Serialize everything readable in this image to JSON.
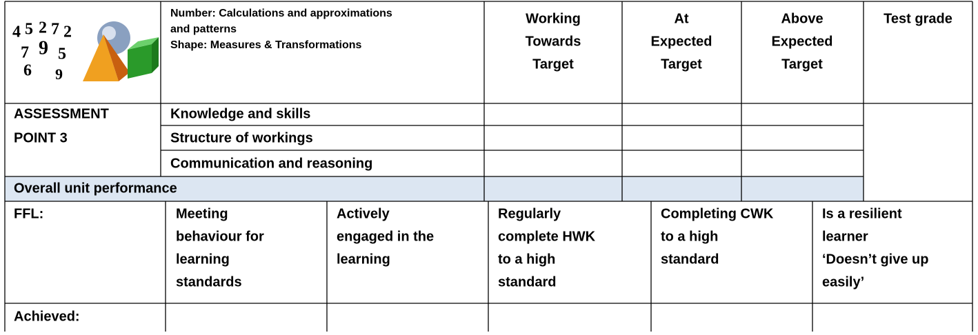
{
  "header": {
    "description": [
      "Number: Calculations and approximations",
      "and patterns",
      "Shape: Measures & Transformations"
    ],
    "columns": [
      [
        "Working",
        "Towards",
        "Target"
      ],
      [
        "At",
        "Expected",
        "Target"
      ],
      [
        "Above",
        "Expected",
        "Target"
      ],
      [
        "Test grade"
      ]
    ]
  },
  "assessment": {
    "label": [
      "ASSESSMENT",
      "POINT 3"
    ],
    "criteria": [
      "Knowledge and skills",
      "Structure of workings",
      "Communication and reasoning"
    ],
    "overall": "Overall unit performance"
  },
  "ffl": {
    "label": "FFL:",
    "columns": [
      [
        "Meeting",
        "behaviour for",
        "learning",
        "standards"
      ],
      [
        "Actively",
        "engaged in the",
        "learning"
      ],
      [
        "Regularly",
        "complete HWK",
        "to a high",
        "standard"
      ],
      [
        "Completing CWK",
        "to a high",
        "standard"
      ],
      [
        "Is a resilient",
        "learner",
        "‘Doesn’t give up",
        "easily’"
      ]
    ],
    "achieved": "Achieved:"
  }
}
